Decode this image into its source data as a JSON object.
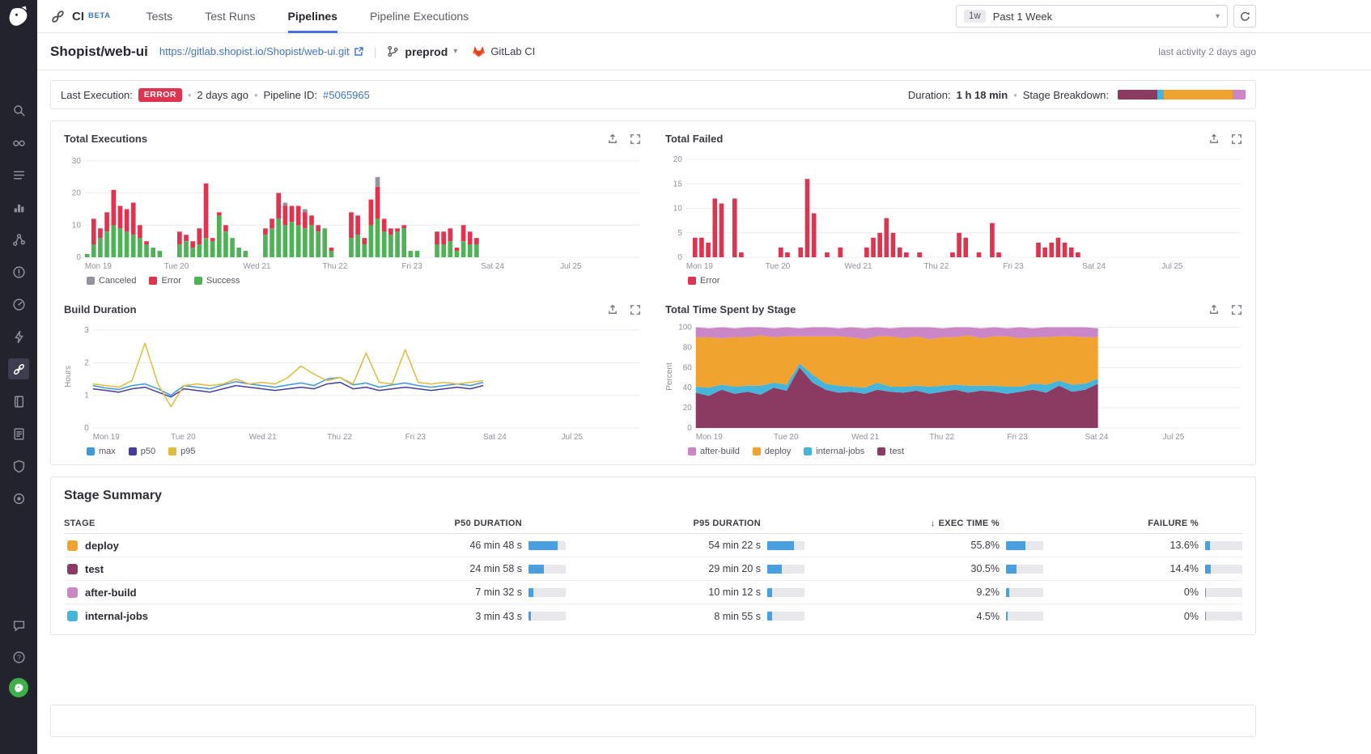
{
  "sidebar": {
    "icons": [
      "search",
      "watchdog",
      "events",
      "metrics",
      "apm",
      "monitors",
      "synthetics",
      "serverless",
      "ci-pipelines",
      "notebooks",
      "logs",
      "security",
      "settings"
    ],
    "bottom_icons": [
      "chat",
      "help",
      "user-avatar"
    ]
  },
  "topnav": {
    "product": "CI",
    "beta": "BETA",
    "tabs": [
      {
        "label": "Tests",
        "active": false
      },
      {
        "label": "Test Runs",
        "active": false
      },
      {
        "label": "Pipelines",
        "active": true
      },
      {
        "label": "Pipeline Executions",
        "active": false
      }
    ],
    "time_range": {
      "badge": "1w",
      "label": "Past 1 Week"
    }
  },
  "header": {
    "title": "Shopist/web-ui",
    "repo_url": "https://gitlab.shopist.io/Shopist/web-ui.git",
    "branch": "preprod",
    "provider": "GitLab CI",
    "last_activity": "last activity 2 days ago"
  },
  "status_bar": {
    "last_execution_label": "Last Execution:",
    "status": "ERROR",
    "status_color": "#de3450",
    "time_ago": "2 days ago",
    "pipeline_id_label": "Pipeline ID:",
    "pipeline_id": "#5065965",
    "duration_label": "Duration:",
    "duration": "1 h 18 min",
    "stage_breakdown_label": "Stage Breakdown:",
    "breakdown_segments": [
      {
        "stage": "test",
        "color": "#8b3a62",
        "pct": 31
      },
      {
        "stage": "internal-jobs",
        "color": "#46b5d9",
        "pct": 5
      },
      {
        "stage": "deploy",
        "color": "#f0a32f",
        "pct": 54
      },
      {
        "stage": "after-build",
        "color": "#ca86c6",
        "pct": 10
      }
    ]
  },
  "charts": {
    "x_labels": [
      "Mon 19",
      "Tue 20",
      "Wed 21",
      "Thu 22",
      "Fri 23",
      "Sat 24",
      "Jul 25"
    ],
    "bins_per_day": 12,
    "total_bins": 84,
    "total_executions": {
      "title": "Total Executions",
      "type": "bar",
      "y_ticks": [
        0,
        10,
        20,
        30
      ],
      "y_max": 32,
      "stack_keys": [
        "success",
        "error",
        "canceled"
      ],
      "colors": {
        "success": "#50b257",
        "error": "#de3450",
        "canceled": "#94949c"
      },
      "legend": [
        {
          "label": "Canceled",
          "color": "#94949c"
        },
        {
          "label": "Error",
          "color": "#de3450"
        },
        {
          "label": "Success",
          "color": "#50b257"
        }
      ],
      "bins": [
        [
          0,
          1,
          0,
          0
        ],
        [
          1,
          4,
          8,
          0
        ],
        [
          2,
          6,
          3,
          0
        ],
        [
          3,
          8,
          6,
          0
        ],
        [
          4,
          10,
          11,
          0
        ],
        [
          5,
          9,
          7,
          0
        ],
        [
          6,
          8,
          7,
          0
        ],
        [
          7,
          7,
          10,
          0
        ],
        [
          8,
          6,
          4,
          0
        ],
        [
          9,
          4,
          1,
          0
        ],
        [
          10,
          3,
          0,
          0
        ],
        [
          11,
          2,
          0,
          0
        ],
        [
          14,
          4,
          4,
          0
        ],
        [
          15,
          5,
          2,
          0
        ],
        [
          16,
          3,
          2,
          0
        ],
        [
          17,
          4,
          5,
          0
        ],
        [
          18,
          6,
          17,
          0
        ],
        [
          19,
          5,
          1,
          0
        ],
        [
          20,
          13,
          1,
          0
        ],
        [
          21,
          8,
          2,
          0
        ],
        [
          22,
          6,
          0,
          0
        ],
        [
          23,
          3,
          0,
          0
        ],
        [
          24,
          2,
          0,
          0
        ],
        [
          27,
          7,
          2,
          0
        ],
        [
          28,
          9,
          3,
          0
        ],
        [
          29,
          12,
          8,
          0
        ],
        [
          30,
          10,
          6,
          1
        ],
        [
          31,
          11,
          5,
          0
        ],
        [
          32,
          10,
          6,
          0
        ],
        [
          33,
          9,
          5,
          1
        ],
        [
          34,
          10,
          3,
          0
        ],
        [
          35,
          8,
          2,
          0
        ],
        [
          36,
          9,
          0,
          0
        ],
        [
          37,
          2,
          1,
          0
        ],
        [
          40,
          6,
          8,
          0
        ],
        [
          41,
          7,
          6,
          0
        ],
        [
          42,
          4,
          2,
          0
        ],
        [
          43,
          10,
          8,
          0
        ],
        [
          44,
          12,
          10,
          3
        ],
        [
          45,
          8,
          4,
          0
        ],
        [
          46,
          7,
          2,
          0
        ],
        [
          47,
          8,
          1,
          0
        ],
        [
          48,
          9,
          1,
          0
        ],
        [
          49,
          2,
          0,
          0
        ],
        [
          50,
          2,
          0,
          0
        ],
        [
          53,
          4,
          4,
          0
        ],
        [
          54,
          4,
          4,
          0
        ],
        [
          55,
          5,
          4,
          0
        ],
        [
          56,
          2,
          1,
          0
        ],
        [
          57,
          5,
          5,
          0
        ],
        [
          58,
          4,
          4,
          0
        ],
        [
          59,
          4,
          2,
          0
        ]
      ]
    },
    "total_failed": {
      "title": "Total Failed",
      "type": "bar",
      "y_ticks": [
        0,
        5,
        10,
        15,
        20
      ],
      "y_max": 21,
      "stack_keys": [
        "error"
      ],
      "colors": {
        "error": "#de3450"
      },
      "legend": [
        {
          "label": "Error",
          "color": "#de3450"
        }
      ],
      "bins": [
        [
          1,
          4
        ],
        [
          2,
          4
        ],
        [
          3,
          3
        ],
        [
          4,
          12
        ],
        [
          5,
          11
        ],
        [
          7,
          12
        ],
        [
          8,
          1
        ],
        [
          14,
          2
        ],
        [
          15,
          1
        ],
        [
          17,
          2
        ],
        [
          18,
          16
        ],
        [
          19,
          9
        ],
        [
          21,
          1
        ],
        [
          23,
          2
        ],
        [
          27,
          2
        ],
        [
          28,
          4
        ],
        [
          29,
          5
        ],
        [
          30,
          8
        ],
        [
          31,
          5
        ],
        [
          32,
          2
        ],
        [
          33,
          1
        ],
        [
          35,
          1
        ],
        [
          40,
          1
        ],
        [
          41,
          5
        ],
        [
          42,
          4
        ],
        [
          44,
          1
        ],
        [
          46,
          7
        ],
        [
          47,
          1
        ],
        [
          53,
          3
        ],
        [
          54,
          2
        ],
        [
          55,
          3
        ],
        [
          56,
          4
        ],
        [
          57,
          3
        ],
        [
          58,
          2
        ],
        [
          59,
          1
        ]
      ]
    },
    "build_duration": {
      "title": "Build Duration",
      "type": "line",
      "ylabel": "Hours",
      "y_ticks": [
        0,
        1,
        2,
        3
      ],
      "y_max": 3.15,
      "x_start": 0,
      "x_step": 2,
      "series": [
        {
          "name": "max",
          "color": "#3f97dc",
          "values": [
            1.3,
            1.22,
            1.18,
            1.3,
            1.35,
            1.2,
            1.0,
            1.3,
            1.25,
            1.2,
            1.32,
            1.42,
            1.35,
            1.3,
            1.25,
            1.32,
            1.38,
            1.3,
            1.5,
            1.55,
            1.32,
            1.38,
            1.25,
            1.32,
            1.38,
            1.3,
            1.25,
            1.3,
            1.35,
            1.3,
            1.4
          ]
        },
        {
          "name": "p50",
          "color": "#443d9e",
          "values": [
            1.2,
            1.15,
            1.1,
            1.2,
            1.25,
            1.1,
            0.95,
            1.2,
            1.15,
            1.1,
            1.2,
            1.3,
            1.25,
            1.2,
            1.15,
            1.2,
            1.25,
            1.2,
            1.35,
            1.4,
            1.2,
            1.25,
            1.15,
            1.2,
            1.25,
            1.2,
            1.15,
            1.2,
            1.25,
            1.2,
            1.3
          ]
        },
        {
          "name": "p95",
          "color": "#e2bb3c",
          "values": [
            1.35,
            1.3,
            1.25,
            1.45,
            2.6,
            1.35,
            0.65,
            1.3,
            1.35,
            1.3,
            1.35,
            1.5,
            1.35,
            1.4,
            1.35,
            1.55,
            1.9,
            1.65,
            1.45,
            1.55,
            1.35,
            2.3,
            1.4,
            1.35,
            2.4,
            1.4,
            1.35,
            1.4,
            1.35,
            1.4,
            1.45
          ]
        }
      ],
      "legend": [
        {
          "label": "max",
          "color": "#3f97dc"
        },
        {
          "label": "p50",
          "color": "#443d9e"
        },
        {
          "label": "p95",
          "color": "#e2bb3c"
        }
      ]
    },
    "time_by_stage": {
      "title": "Total Time Spent by Stage",
      "type": "area",
      "ylabel": "Percent",
      "y_ticks": [
        0,
        20,
        40,
        60,
        80,
        100
      ],
      "y_max": 102,
      "x_start": 0,
      "x_step": 2,
      "series": [
        {
          "name": "test",
          "color": "#8b3a62",
          "values": [
            35,
            32,
            38,
            34,
            36,
            33,
            40,
            37,
            60,
            45,
            38,
            35,
            36,
            34,
            38,
            36,
            35,
            37,
            34,
            36,
            38,
            35,
            37,
            36,
            34,
            36,
            38,
            35,
            42,
            36,
            38,
            44
          ]
        },
        {
          "name": "internal-jobs",
          "color": "#46b5d9",
          "values": [
            6,
            8,
            5,
            7,
            6,
            9,
            5,
            6,
            4,
            8,
            6,
            7,
            5,
            6,
            7,
            5,
            6,
            5,
            7,
            6,
            5,
            7,
            5,
            6,
            7,
            5,
            6,
            8,
            5,
            7,
            6,
            5
          ]
        },
        {
          "name": "deploy",
          "color": "#f0a32f",
          "values": [
            49,
            50,
            46,
            49,
            48,
            50,
            45,
            48,
            27,
            38,
            47,
            49,
            49,
            48,
            46,
            50,
            48,
            49,
            47,
            48,
            47,
            50,
            47,
            49,
            50,
            48,
            46,
            47,
            44,
            48,
            46,
            41
          ]
        },
        {
          "name": "after-build",
          "color": "#ca86c6",
          "values": [
            10,
            9,
            11,
            9,
            10,
            8,
            9,
            9,
            8,
            9,
            9,
            8,
            10,
            11,
            9,
            8,
            11,
            9,
            12,
            9,
            10,
            8,
            10,
            9,
            8,
            11,
            9,
            10,
            9,
            9,
            10,
            9
          ]
        }
      ],
      "legend": [
        {
          "label": "after-build",
          "color": "#ca86c6"
        },
        {
          "label": "deploy",
          "color": "#f0a32f"
        },
        {
          "label": "internal-jobs",
          "color": "#46b5d9"
        },
        {
          "label": "test",
          "color": "#8b3a62"
        }
      ]
    }
  },
  "stage_summary": {
    "title": "Stage Summary",
    "sort_arrow": "↓",
    "columns": {
      "stage": "STAGE",
      "p50": "P50 DURATION",
      "p95": "P95 DURATION",
      "exec": "EXEC TIME %",
      "failure": "FAILURE %"
    },
    "rows": [
      {
        "stage": "deploy",
        "color": "#f0a32f",
        "p50": "46 min 48 s",
        "p50_bar": 0.78,
        "p95": "54 min 22 s",
        "p95_bar": 0.72,
        "exec": "55.8%",
        "exec_bar": 0.52,
        "failure": "13.6%",
        "failure_bar": 0.14
      },
      {
        "stage": "test",
        "color": "#8b3a62",
        "p50": "24 min 58 s",
        "p50_bar": 0.42,
        "p95": "29 min 20 s",
        "p95_bar": 0.39,
        "exec": "30.5%",
        "exec_bar": 0.29,
        "failure": "14.4%",
        "failure_bar": 0.15
      },
      {
        "stage": "after-build",
        "color": "#ca86c6",
        "p50": "7 min 32 s",
        "p50_bar": 0.13,
        "p95": "10 min 12 s",
        "p95_bar": 0.14,
        "exec": "9.2%",
        "exec_bar": 0.09,
        "failure": "0%",
        "failure_bar": 0.02
      },
      {
        "stage": "internal-jobs",
        "color": "#46b5d9",
        "p50": "3 min 43 s",
        "p50_bar": 0.07,
        "p95": "8 min 55 s",
        "p95_bar": 0.12,
        "exec": "4.5%",
        "exec_bar": 0.05,
        "failure": "0%",
        "failure_bar": 0.02
      }
    ]
  }
}
